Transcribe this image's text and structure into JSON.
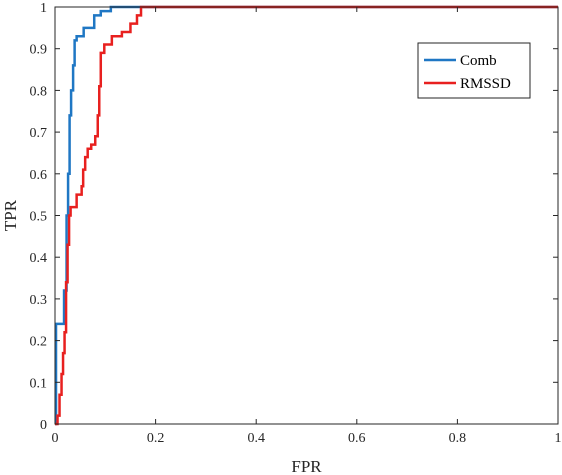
{
  "chart_data": {
    "type": "line",
    "title": "",
    "xlabel": "FPR",
    "ylabel": "TPR",
    "xlim": [
      0,
      1
    ],
    "ylim": [
      0,
      1
    ],
    "x_ticks": [
      0,
      0.2,
      0.4,
      0.6,
      0.8,
      1
    ],
    "x_tick_labels": [
      "0",
      "0.2",
      "0.4",
      "0.6",
      "0.8",
      "1"
    ],
    "y_ticks": [
      0,
      0.1,
      0.2,
      0.3,
      0.4,
      0.5,
      0.6,
      0.7,
      0.8,
      0.9,
      1
    ],
    "y_tick_labels": [
      "0",
      "0.1",
      "0.2",
      "0.3",
      "0.4",
      "0.5",
      "0.6",
      "0.7",
      "0.8",
      "0.9",
      "1"
    ],
    "grid": false,
    "legend_position": "top-right",
    "series": [
      {
        "name": "Comb",
        "color": "#1f77c4",
        "x": [
          0,
          0.002,
          0.002,
          0.018,
          0.018,
          0.023,
          0.023,
          0.026,
          0.026,
          0.029,
          0.029,
          0.032,
          0.032,
          0.036,
          0.036,
          0.039,
          0.039,
          0.043,
          0.043,
          0.057,
          0.057,
          0.078,
          0.078,
          0.091,
          0.091,
          0.111,
          0.111,
          0.171,
          0.171,
          1
        ],
        "y": [
          0,
          0,
          0.24,
          0.24,
          0.32,
          0.32,
          0.5,
          0.5,
          0.6,
          0.6,
          0.74,
          0.74,
          0.8,
          0.8,
          0.86,
          0.86,
          0.92,
          0.92,
          0.93,
          0.93,
          0.95,
          0.95,
          0.98,
          0.98,
          0.99,
          0.99,
          1.0,
          1.0,
          1.0,
          1.0
        ]
      },
      {
        "name": "RMSSD",
        "color": "#e8201f",
        "x": [
          0,
          0.005,
          0.005,
          0.009,
          0.009,
          0.013,
          0.013,
          0.016,
          0.016,
          0.019,
          0.019,
          0.022,
          0.022,
          0.025,
          0.025,
          0.028,
          0.028,
          0.031,
          0.031,
          0.043,
          0.043,
          0.053,
          0.053,
          0.056,
          0.056,
          0.06,
          0.06,
          0.065,
          0.065,
          0.072,
          0.072,
          0.08,
          0.08,
          0.085,
          0.085,
          0.088,
          0.088,
          0.091,
          0.091,
          0.098,
          0.098,
          0.113,
          0.113,
          0.133,
          0.133,
          0.15,
          0.15,
          0.163,
          0.163,
          0.171,
          0.171,
          1
        ],
        "y": [
          0,
          0,
          0.02,
          0.02,
          0.07,
          0.07,
          0.12,
          0.12,
          0.17,
          0.17,
          0.22,
          0.22,
          0.34,
          0.34,
          0.43,
          0.43,
          0.5,
          0.5,
          0.52,
          0.52,
          0.55,
          0.55,
          0.57,
          0.57,
          0.61,
          0.61,
          0.64,
          0.64,
          0.66,
          0.66,
          0.67,
          0.67,
          0.69,
          0.69,
          0.74,
          0.74,
          0.81,
          0.81,
          0.89,
          0.89,
          0.91,
          0.91,
          0.93,
          0.93,
          0.94,
          0.94,
          0.96,
          0.96,
          0.98,
          0.98,
          1.0,
          1.0
        ]
      }
    ]
  }
}
